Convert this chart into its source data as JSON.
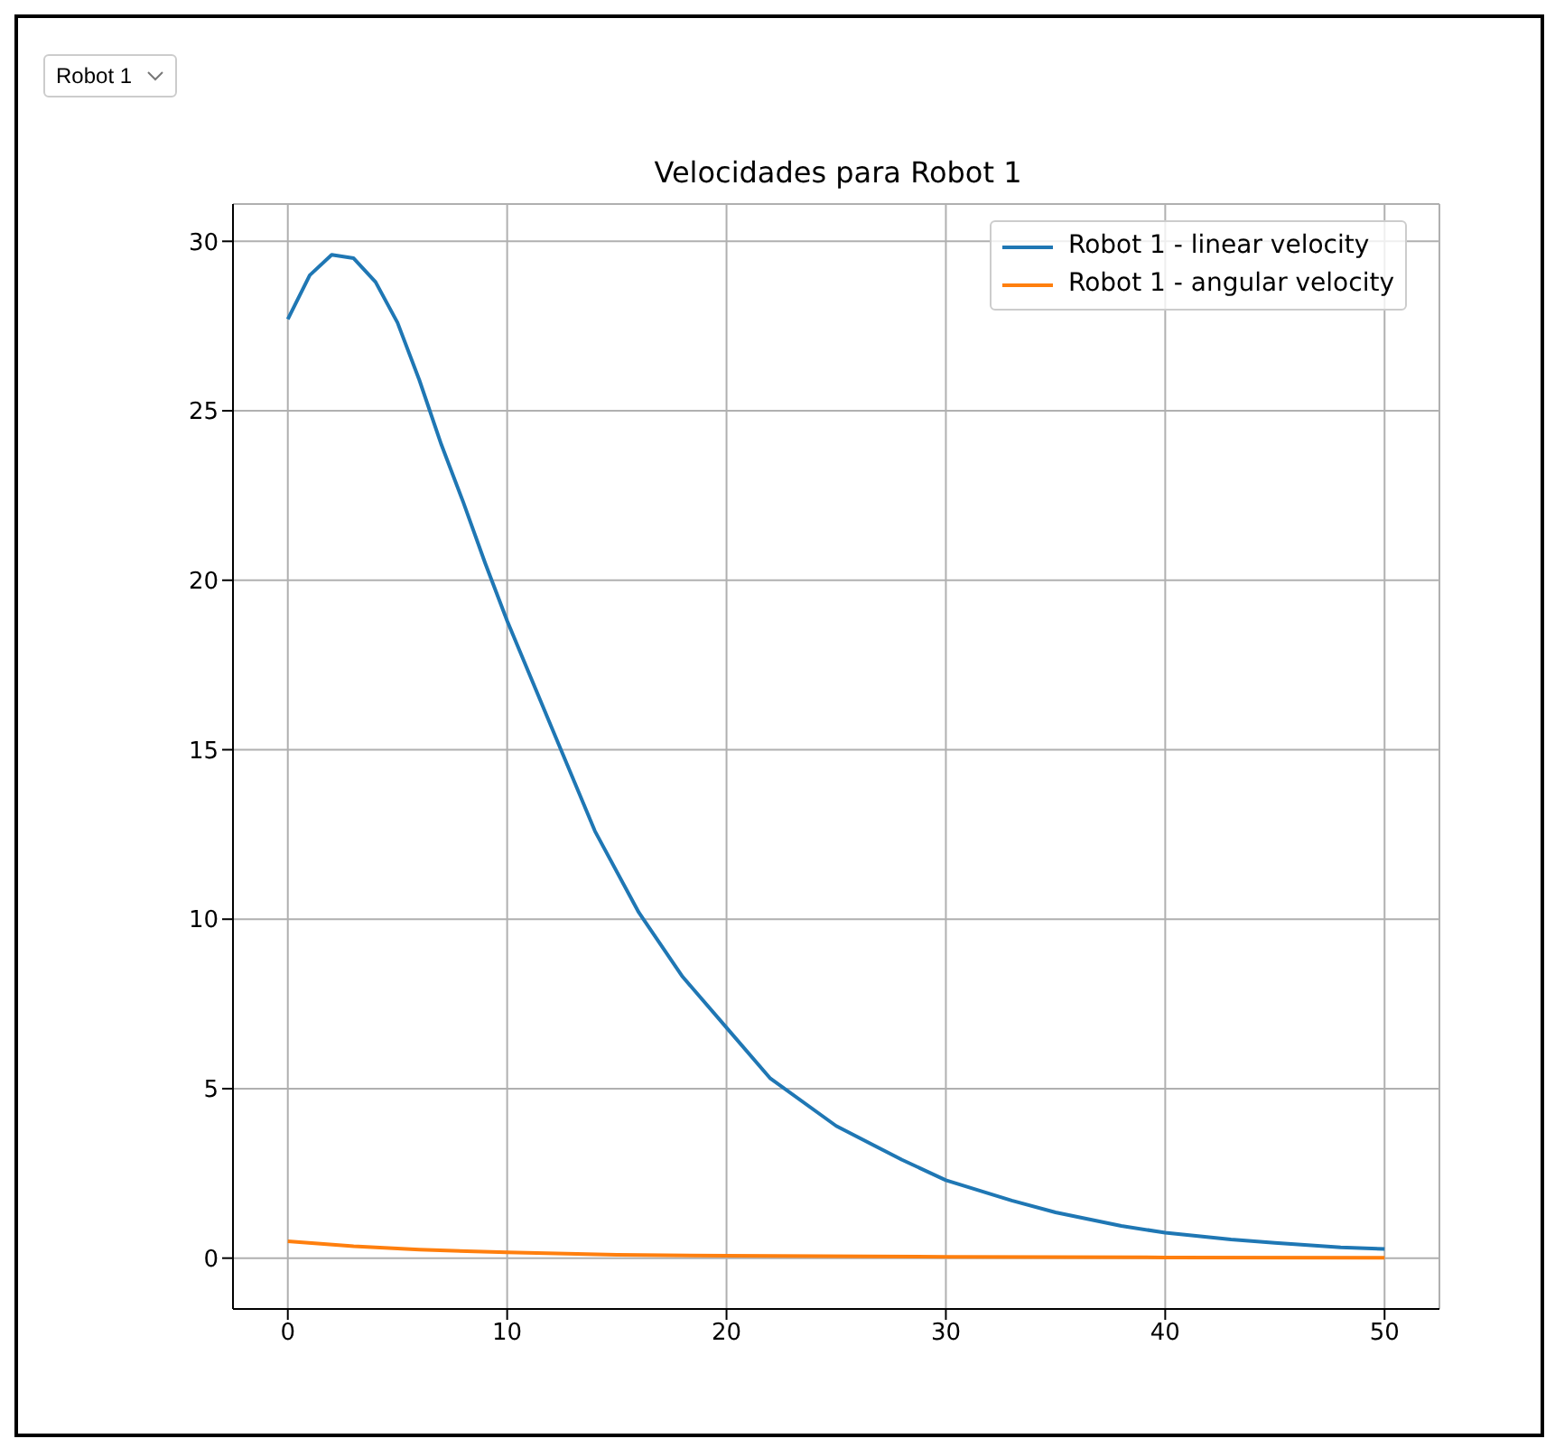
{
  "chart_data": {
    "type": "line",
    "title": "Velocidades para Robot 1",
    "annotations": [
      "Robot 1"
    ],
    "series": [
      {
        "name": "Robot 1 - linear velocity",
        "color": "#1f77b4",
        "x": [
          0,
          1,
          2,
          3,
          4,
          5,
          6,
          7,
          8,
          9,
          10,
          12,
          14,
          16,
          18,
          20,
          22,
          25,
          28,
          30,
          33,
          35,
          38,
          40,
          43,
          45,
          48,
          50
        ],
        "values": [
          27.7,
          29.0,
          29.6,
          29.5,
          28.8,
          27.6,
          25.9,
          24.0,
          22.3,
          20.5,
          18.8,
          15.7,
          12.6,
          10.2,
          8.3,
          6.8,
          5.3,
          3.9,
          2.9,
          2.3,
          1.7,
          1.35,
          0.95,
          0.75,
          0.55,
          0.45,
          0.32,
          0.27
        ]
      },
      {
        "name": "Robot 1 - angular velocity",
        "color": "#ff7f0e",
        "x": [
          0,
          3,
          6,
          10,
          15,
          20,
          30,
          40,
          50
        ],
        "values": [
          0.5,
          0.35,
          0.25,
          0.17,
          0.1,
          0.07,
          0.04,
          0.02,
          0.01
        ]
      }
    ],
    "xlim": [
      -2.5,
      52.5
    ],
    "xticks": [
      0,
      10,
      20,
      30,
      40,
      50
    ],
    "ylim": [
      -1.5,
      31.1
    ],
    "yticks": [
      0,
      5,
      10,
      15,
      20,
      25,
      30
    ],
    "grid": true,
    "legend": "top right",
    "line_style": "solid",
    "marker": "none"
  }
}
